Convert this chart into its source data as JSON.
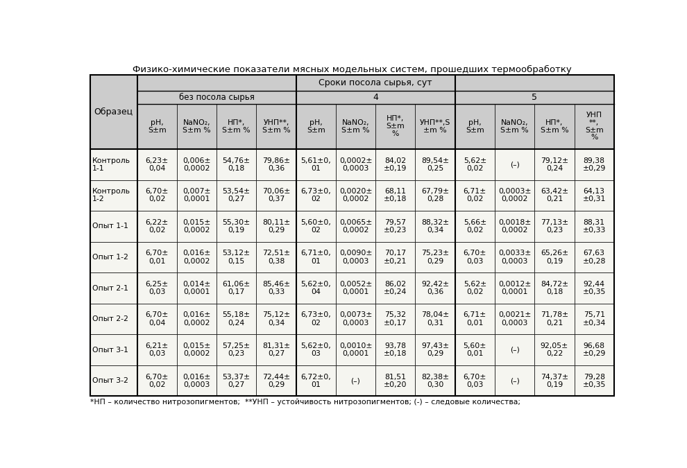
{
  "title": "Физико-химические показатели мясных модельных систем, прошедших термообработку",
  "footnote": "*НП – количество нитрозопигментов;  **УНП – устойчивость нитрозопигментов; (-) – следовые количества;",
  "col_headers": [
    "pH,\nS±m",
    "NaNO₂,\nS±m %",
    "НП*,\nS±m %",
    "УНП**,\nS±m %",
    "pH,\nS±m",
    "NaNO₂,\nS±m %",
    "НП*,\nS±m\n%",
    "УНП**,S\n±m %",
    "pH,\nS±m",
    "NaNO₂,\nS±m %",
    "НП*,\nS±m %",
    "УНП\n**,\nS±m\n%"
  ],
  "rows": [
    {
      "name": "Контроль\n1-1",
      "data": [
        "6,23±\n0,04",
        "0,006±\n0,0002",
        "54,76±\n0,18",
        "79,86±\n0,36",
        "5,61±0,\n01",
        "0,0002±\n0,0003",
        "84,02\n±0,19",
        "89,54±\n0,25",
        "5,62±\n0,02",
        "(–)",
        "79,12±\n0,24",
        "89,38\n±0,29"
      ]
    },
    {
      "name": "Контроль\n1-2",
      "data": [
        "6,70±\n0,02",
        "0,007±\n0,0001",
        "53,54±\n0,27",
        "70,06±\n0,37",
        "6,73±0,\n02",
        "0,0020±\n0,0002",
        "68,11\n±0,18",
        "67,79±\n0,28",
        "6,71±\n0,02",
        "0,0003±\n0,0002",
        "63,42±\n0,21",
        "64,13\n±0,31"
      ]
    },
    {
      "name": "Опыт 1-1",
      "data": [
        "6,22±\n0,02",
        "0,015±\n0,0002",
        "55,30±\n0,19",
        "80,11±\n0,29",
        "5,60±0,\n02",
        "0,0065±\n0,0002",
        "79,57\n±0,23",
        "88,32±\n0,34",
        "5,66±\n0,02",
        "0,0018±\n0,0002",
        "77,13±\n0,23",
        "88,31\n±0,33"
      ]
    },
    {
      "name": "Опыт 1-2",
      "data": [
        "6,70±\n0,01",
        "0,016±\n0,0002",
        "53,12±\n0,15",
        "72,51±\n0,38",
        "6,71±0,\n01",
        "0,0090±\n0,0003",
        "70,17\n±0,21",
        "75,23±\n0,29",
        "6,70±\n0,03",
        "0,0033±\n0,0003",
        "65,26±\n0,19",
        "67,63\n±0,28"
      ]
    },
    {
      "name": "Опыт 2-1",
      "data": [
        "6,25±\n0,03",
        "0,014±\n0,0001",
        "61,06±\n0,17",
        "85,46±\n0,33",
        "5,62±0,\n04",
        "0,0052±\n0,0001",
        "86,02\n±0,24",
        "92,42±\n0,36",
        "5,62±\n0,02",
        "0,0012±\n0,0001",
        "84,72±\n0,18",
        "92,44\n±0,35"
      ]
    },
    {
      "name": "Опыт 2-2",
      "data": [
        "6,70±\n0,04",
        "0,016±\n0,0002",
        "55,18±\n0,24",
        "75,12±\n0,34",
        "6,73±0,\n02",
        "0,0073±\n0,0003",
        "75,32\n±0,17",
        "78,04±\n0,31",
        "6,71±\n0,01",
        "0,0021±\n0,0003",
        "71,78±\n0,21",
        "75,71\n±0,34"
      ]
    },
    {
      "name": "Опыт 3-1",
      "data": [
        "6,21±\n0,03",
        "0,015±\n0,0002",
        "57,25±\n0,23",
        "81,31±\n0,27",
        "5,62±0,\n03",
        "0,0010±\n0,0001",
        "93,78\n±0,18",
        "97,43±\n0,29",
        "5,60±\n0,01",
        "(–)",
        "92,05±\n0,22",
        "96,68\n±0,29"
      ]
    },
    {
      "name": "Опыт 3-2",
      "data": [
        "6,70±\n0,02",
        "0,016±\n0,0003",
        "53,37±\n0,27",
        "72,44±\n0,29",
        "6,72±0,\n01",
        "(–)",
        "81,51\n±0,20",
        "82,38±\n0,30",
        "6,70±\n0,03",
        "(–)",
        "74,37±\n0,19",
        "79,28\n±0,35"
      ]
    }
  ],
  "header_bg": "#cccccc",
  "cell_bg": "#f5f5f0",
  "font_size": 7.8,
  "title_font_size": 9.5
}
